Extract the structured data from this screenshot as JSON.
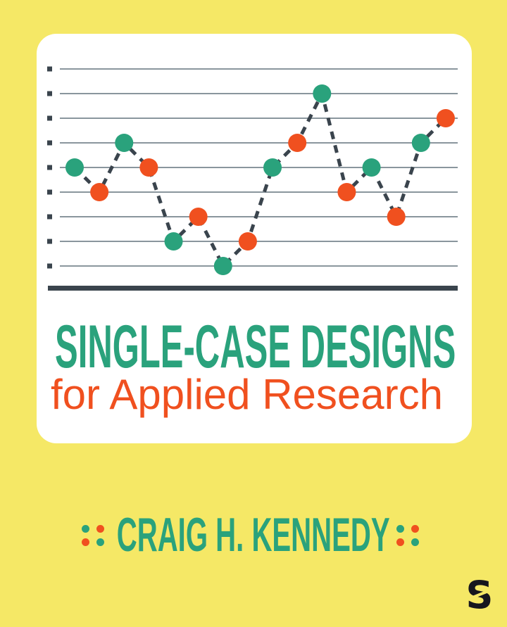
{
  "cover": {
    "title_line1": "SINGLE-CASE DESIGNS",
    "title_line2": "for Applied Research",
    "author": "CRAIG H. KENNEDY",
    "publisher_logo_letter": "S"
  },
  "colors": {
    "background": "#f5e866",
    "card": "#ffffff",
    "teal": "#2aa27c",
    "orange": "#f0501f",
    "ink": "#3a444d",
    "gridline": "#8a969d",
    "logo": "#16161e"
  },
  "chart_data": {
    "type": "line",
    "title": "",
    "xlabel": "",
    "ylabel": "",
    "x": [
      1,
      2,
      3,
      4,
      5,
      6,
      7,
      8,
      9,
      10,
      11,
      12,
      13,
      14,
      15,
      16
    ],
    "values": [
      5,
      4,
      6,
      5,
      2,
      3,
      1,
      2,
      5,
      6,
      8,
      4,
      5,
      3,
      6,
      7
    ],
    "point_colors": [
      "teal",
      "orange",
      "teal",
      "orange",
      "teal",
      "orange",
      "teal",
      "orange",
      "teal",
      "orange",
      "teal",
      "orange",
      "teal",
      "orange",
      "teal",
      "orange"
    ],
    "line_style": "dashed",
    "line_color": "ink",
    "gridline_values": [
      1,
      2,
      3,
      4,
      5,
      6,
      7,
      8,
      9
    ],
    "ylim": [
      0,
      10
    ],
    "grid": "horizontal",
    "axis_ticks": "left-squares",
    "legend": "none"
  },
  "decor": {
    "dot_colors": [
      [
        "teal",
        "orange"
      ],
      [
        "orange",
        "teal"
      ]
    ]
  }
}
